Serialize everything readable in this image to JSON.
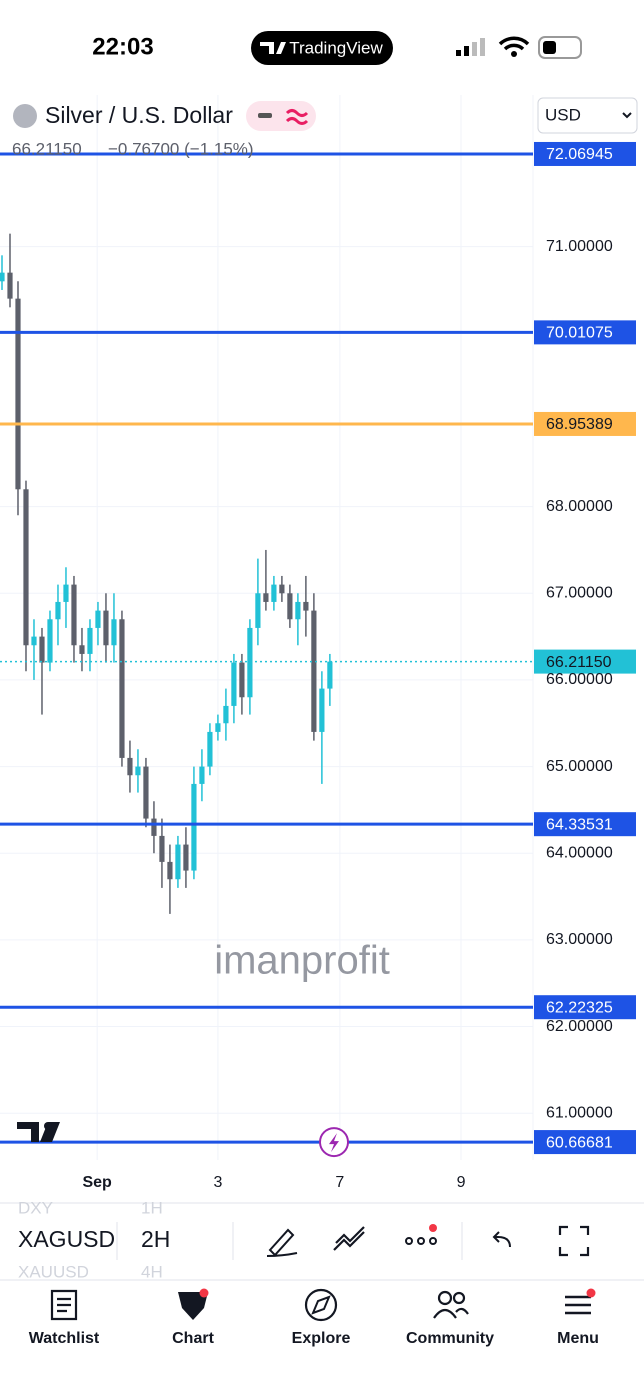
{
  "status_bar": {
    "time": "22:03",
    "app": "TradingView"
  },
  "header": {
    "symbol_name": "Silver / U.S. Dollar",
    "currency": "USD",
    "last": "66.21150",
    "change": "−0.76700 (−1.15%)"
  },
  "chart_data": {
    "type": "candlestick",
    "open": [
      70.6,
      70.7,
      70.4,
      68.2,
      66.4,
      66.5,
      66.2,
      66.7,
      66.9,
      67.1,
      66.4,
      66.3,
      66.6,
      66.8,
      66.4,
      66.7,
      65.1,
      64.9,
      65.0,
      64.4,
      64.2,
      63.9,
      63.7,
      64.1,
      63.8,
      64.8,
      65.0,
      65.4,
      65.5,
      65.7,
      66.2,
      65.8,
      66.6,
      67.0,
      66.9,
      67.1,
      67.0,
      66.7,
      66.9,
      66.8,
      65.4,
      65.9
    ],
    "high": [
      70.9,
      71.15,
      70.6,
      68.3,
      66.7,
      66.6,
      66.8,
      67.1,
      67.3,
      67.2,
      66.6,
      66.7,
      66.9,
      67.0,
      67.0,
      66.8,
      65.3,
      65.2,
      65.1,
      64.6,
      64.4,
      64.1,
      64.2,
      64.3,
      65.0,
      65.2,
      65.5,
      65.6,
      65.9,
      66.3,
      66.3,
      66.7,
      67.4,
      67.5,
      67.2,
      67.2,
      67.1,
      67.0,
      67.2,
      67.0,
      66.1,
      66.3
    ],
    "low": [
      70.5,
      70.3,
      67.9,
      66.1,
      66.0,
      65.6,
      66.1,
      66.4,
      66.6,
      66.2,
      66.1,
      66.1,
      66.4,
      66.2,
      66.2,
      65.0,
      64.7,
      64.7,
      64.3,
      64.0,
      63.6,
      63.3,
      63.6,
      63.6,
      63.7,
      64.6,
      64.9,
      65.3,
      65.3,
      65.5,
      65.6,
      65.6,
      66.4,
      66.8,
      66.8,
      66.9,
      66.6,
      66.4,
      66.5,
      65.3,
      64.8,
      65.7
    ],
    "close": [
      70.7,
      70.4,
      68.2,
      66.4,
      66.5,
      66.2,
      66.7,
      66.9,
      67.1,
      66.4,
      66.3,
      66.6,
      66.8,
      66.4,
      66.7,
      65.1,
      64.9,
      65.0,
      64.4,
      64.2,
      63.9,
      63.7,
      64.1,
      63.8,
      64.8,
      65.0,
      65.4,
      65.5,
      65.7,
      66.2,
      65.8,
      66.6,
      67.0,
      66.9,
      67.1,
      67.0,
      66.7,
      66.9,
      66.8,
      65.4,
      65.9,
      66.2115
    ],
    "up_color": "#22c1d6",
    "down_color": "#5d606b",
    "ylim": [
      60.46,
      72.75
    ],
    "yticks": [
      {
        "value": 61,
        "label": "61.00000"
      },
      {
        "value": 62,
        "label": "62.00000"
      },
      {
        "value": 63,
        "label": "63.00000"
      },
      {
        "value": 64,
        "label": "64.00000"
      },
      {
        "value": 65,
        "label": "65.00000"
      },
      {
        "value": 66,
        "label": "66.00000"
      },
      {
        "value": 67,
        "label": "67.00000"
      },
      {
        "value": 68,
        "label": "68.00000"
      },
      {
        "value": 71,
        "label": "71.00000"
      }
    ],
    "xlim": [
      -0.25,
      66.4
    ],
    "xticks": [
      {
        "value": 11.9,
        "label": "Sep"
      },
      {
        "value": 27,
        "label": "3"
      },
      {
        "value": 42.25,
        "label": "7"
      },
      {
        "value": 57.4,
        "label": "9"
      }
    ],
    "grid": true,
    "levels": [
      {
        "value": 72.06945,
        "color": "#1e53e5"
      },
      {
        "value": 70.01075,
        "color": "#1e53e5"
      },
      {
        "value": 68.95389,
        "color": "#ffb74d"
      },
      {
        "value": 64.33531,
        "color": "#1e53e5"
      },
      {
        "value": 62.22325,
        "color": "#1e53e5"
      },
      {
        "value": 60.66681,
        "color": "#1e53e5"
      }
    ],
    "last_price": {
      "value": 66.2115,
      "label": "66.21150",
      "color": "#22c1d6"
    },
    "watermark": "imanprofit"
  },
  "toolbar": {
    "symbol_prev": "DXY",
    "symbol": "XAGUSD",
    "symbol_next": "XAUUSD",
    "interval_prev": "1H",
    "interval": "2H",
    "interval_next": "4H"
  },
  "nav": {
    "items": [
      "Watchlist",
      "Chart",
      "Explore",
      "Community",
      "Menu"
    ]
  }
}
